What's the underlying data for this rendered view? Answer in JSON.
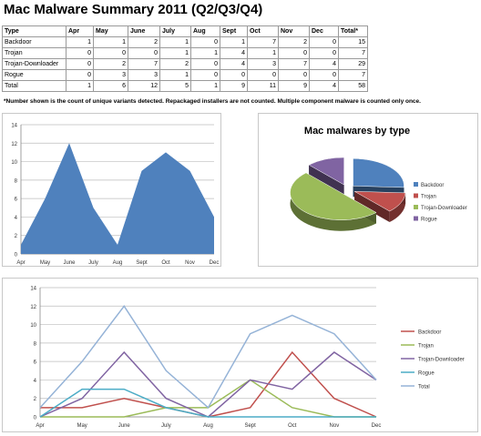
{
  "title": "Mac Malware Summary 2011 (Q2/Q3/Q4)",
  "table": {
    "headers": [
      "Type",
      "Apr",
      "May",
      "June",
      "July",
      "Aug",
      "Sept",
      "Oct",
      "Nov",
      "Dec",
      "Total*"
    ],
    "rows": [
      [
        "Backdoor",
        "1",
        "1",
        "2",
        "1",
        "0",
        "1",
        "7",
        "2",
        "0",
        "15"
      ],
      [
        "Trojan",
        "0",
        "0",
        "0",
        "1",
        "1",
        "4",
        "1",
        "0",
        "0",
        "7"
      ],
      [
        "Trojan-Downloader",
        "0",
        "2",
        "7",
        "2",
        "0",
        "4",
        "3",
        "7",
        "4",
        "29"
      ],
      [
        "Rogue",
        "0",
        "3",
        "3",
        "1",
        "0",
        "0",
        "0",
        "0",
        "0",
        "7"
      ],
      [
        "Total",
        "1",
        "6",
        "12",
        "5",
        "1",
        "9",
        "11",
        "9",
        "4",
        "58"
      ]
    ]
  },
  "note": "*Number shown is the count of unique variants detected. Repackaged installers are not counted. Multiple component malware is counted only once.",
  "chart_data": [
    {
      "type": "area",
      "categories": [
        "Apr",
        "May",
        "June",
        "July",
        "Aug",
        "Sept",
        "Oct",
        "Nov",
        "Dec"
      ],
      "series": [
        {
          "values": [
            1,
            6,
            12,
            5,
            1,
            9,
            11,
            9,
            4
          ],
          "color": "#4f81bd"
        }
      ],
      "ylim": [
        0,
        14
      ],
      "yticks": [
        "0",
        "2",
        "4",
        "6",
        "8",
        "10",
        "12",
        "14"
      ],
      "grid": true
    },
    {
      "type": "pie",
      "title": "Mac malwares by type",
      "categories": [
        "Backdoor",
        "Trojan",
        "Trojan-Downloader",
        "Rogue"
      ],
      "values": [
        15,
        7,
        29,
        7
      ],
      "colors": [
        "#4f81bd",
        "#c0504d",
        "#9bbb59",
        "#8064a2"
      ],
      "legend": "right"
    },
    {
      "type": "line",
      "categories": [
        "Apr",
        "May",
        "June",
        "July",
        "Aug",
        "Sept",
        "Oct",
        "Nov",
        "Dec"
      ],
      "series": [
        {
          "name": "Backdoor",
          "values": [
            1,
            1,
            2,
            1,
            0,
            1,
            7,
            2,
            0
          ],
          "color": "#c0504d"
        },
        {
          "name": "Trojan",
          "values": [
            0,
            0,
            0,
            1,
            1,
            4,
            1,
            0,
            0
          ],
          "color": "#9bbb59"
        },
        {
          "name": "Trojan-Downloader",
          "values": [
            0,
            2,
            7,
            2,
            0,
            4,
            3,
            7,
            4
          ],
          "color": "#8064a2"
        },
        {
          "name": "Rogue",
          "values": [
            0,
            3,
            3,
            1,
            0,
            0,
            0,
            0,
            0
          ],
          "color": "#4bacc6"
        },
        {
          "name": "Total",
          "values": [
            1,
            6,
            12,
            5,
            1,
            9,
            11,
            9,
            4
          ],
          "color": "#95b3d7"
        }
      ],
      "ylim": [
        0,
        14
      ],
      "yticks": [
        "0",
        "2",
        "4",
        "6",
        "8",
        "10",
        "12",
        "14"
      ],
      "grid": true,
      "legend": "right"
    }
  ]
}
